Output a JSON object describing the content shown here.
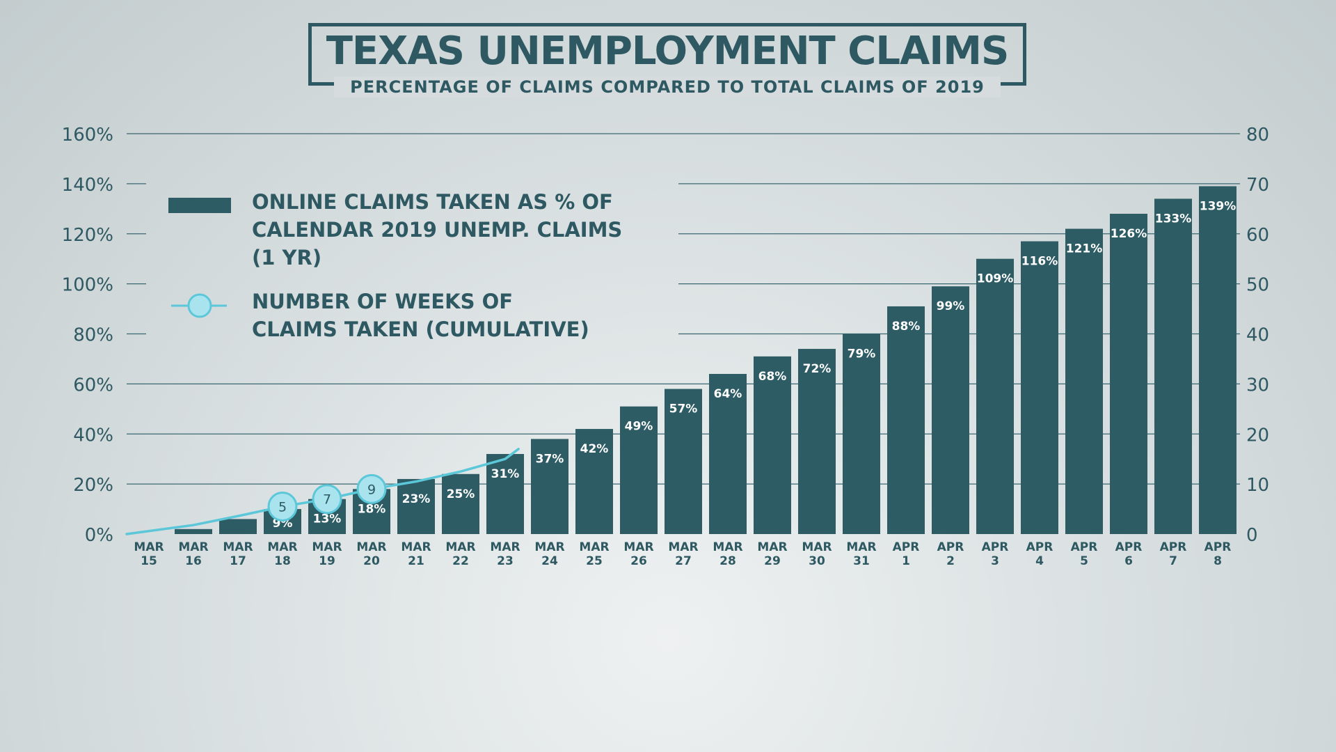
{
  "title": "TEXAS UNEMPLOYMENT CLAIMS",
  "subtitle": "PERCENTAGE OF CLAIMS COMPARED TO TOTAL CLAIMS OF 2019",
  "colors": {
    "bar": "#2d5c65",
    "line": "#5cc7d9",
    "marker_fill": "#a9e4ee",
    "text": "#2e5962",
    "grid": "#3b6870"
  },
  "legend": {
    "bars_label": "ONLINE CLAIMS TAKEN AS % OF\nCALENDAR 2019 UNEMP. CLAIMS\n(1 YR)",
    "line_label": "NUMBER OF WEEKS OF\nCLAIMS TAKEN (CUMULATIVE)",
    "bars_icon": "bar-swatch-icon",
    "line_icon": "line-marker-icon"
  },
  "chart_data": {
    "type": "bar",
    "categories": [
      [
        "MAR",
        "15"
      ],
      [
        "MAR",
        "16"
      ],
      [
        "MAR",
        "17"
      ],
      [
        "MAR",
        "18"
      ],
      [
        "MAR",
        "19"
      ],
      [
        "MAR",
        "20"
      ],
      [
        "MAR",
        "21"
      ],
      [
        "MAR",
        "22"
      ],
      [
        "MAR",
        "23"
      ],
      [
        "MAR",
        "24"
      ],
      [
        "MAR",
        "25"
      ],
      [
        "MAR",
        "26"
      ],
      [
        "MAR",
        "27"
      ],
      [
        "MAR",
        "28"
      ],
      [
        "MAR",
        "29"
      ],
      [
        "MAR",
        "30"
      ],
      [
        "MAR",
        "31"
      ],
      [
        "APR",
        "1"
      ],
      [
        "APR",
        "2"
      ],
      [
        "APR",
        "3"
      ],
      [
        "APR",
        "4"
      ],
      [
        "APR",
        "5"
      ],
      [
        "APR",
        "6"
      ],
      [
        "APR",
        "7"
      ],
      [
        "APR",
        "8"
      ]
    ],
    "bar_series": {
      "values": [
        0,
        2,
        6,
        9,
        13,
        18,
        23,
        25,
        31,
        37,
        42,
        49,
        57,
        64,
        68,
        72,
        79,
        88,
        99,
        109,
        116,
        121,
        126,
        133,
        139
      ],
      "bar_values": [
        0,
        2,
        6,
        10,
        14,
        18,
        22,
        24,
        32,
        38,
        42,
        51,
        58,
        64,
        71,
        74,
        80,
        91,
        99,
        110,
        117,
        122,
        128,
        134,
        139
      ],
      "labels": [
        "",
        "",
        "",
        "9%",
        "13%",
        "18%",
        "23%",
        "25%",
        "31%",
        "37%",
        "42%",
        "49%",
        "57%",
        "64%",
        "68%",
        "72%",
        "79%",
        "88%",
        "99%",
        "109%",
        "116%",
        "121%",
        "126%",
        "133%",
        "139%"
      ]
    },
    "line_series": {
      "x": [
        15,
        16,
        17,
        18,
        19,
        20,
        21,
        22,
        23,
        23.3
      ],
      "values": [
        0,
        1.8,
        3.6,
        5.5,
        7,
        9,
        10.5,
        12.5,
        15,
        17
      ],
      "markers": [
        {
          "index": 3,
          "label": "5"
        },
        {
          "index": 4,
          "label": "7"
        },
        {
          "index": 5,
          "label": "9"
        }
      ]
    },
    "y_left": {
      "ticks": [
        "0%",
        "20%",
        "40%",
        "60%",
        "80%",
        "100%",
        "120%",
        "140%",
        "160%"
      ],
      "tick_values": [
        0,
        20,
        40,
        60,
        80,
        100,
        120,
        140,
        160
      ],
      "ylim": [
        0,
        160
      ]
    },
    "y_right": {
      "ticks": [
        "0",
        "10",
        "20",
        "30",
        "40",
        "50",
        "60",
        "70",
        "80"
      ],
      "tick_values": [
        0,
        10,
        20,
        30,
        40,
        50,
        60,
        70,
        80
      ],
      "ylim": [
        0,
        80
      ]
    },
    "grid": true,
    "legend_position": "top-left"
  }
}
